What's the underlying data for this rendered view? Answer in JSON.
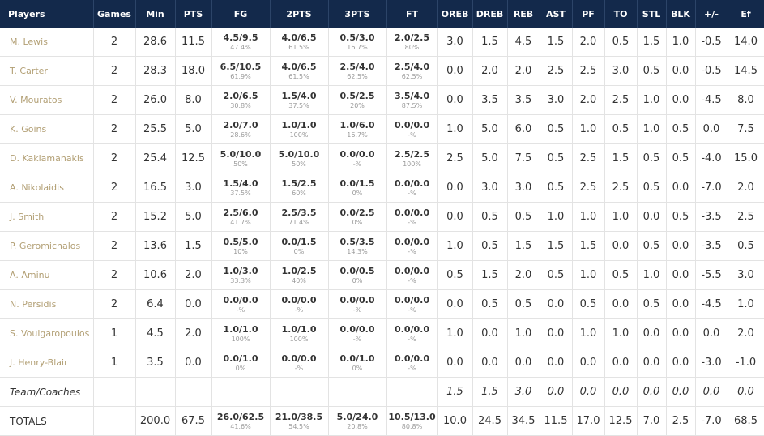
{
  "table": {
    "header": [
      "Players",
      "Games",
      "Min",
      "PTS",
      "FG",
      "2PTS",
      "3PTS",
      "FT",
      "OREB",
      "DREB",
      "REB",
      "AST",
      "PF",
      "TO",
      "STL",
      "BLK",
      "+/-",
      "Ef"
    ],
    "rows": [
      [
        "M. Lewis",
        "2",
        "28.6",
        "11.5",
        [
          "4.5/9.5",
          "47.4%"
        ],
        [
          "4.0/6.5",
          "61.5%"
        ],
        [
          "0.5/3.0",
          "16.7%"
        ],
        [
          "2.0/2.5",
          "80%"
        ],
        "3.0",
        "1.5",
        "4.5",
        "1.5",
        "2.0",
        "0.5",
        "1.5",
        "1.0",
        "-0.5",
        "14.0"
      ],
      [
        "T. Carter",
        "2",
        "28.3",
        "18.0",
        [
          "6.5/10.5",
          "61.9%"
        ],
        [
          "4.0/6.5",
          "61.5%"
        ],
        [
          "2.5/4.0",
          "62.5%"
        ],
        [
          "2.5/4.0",
          "62.5%"
        ],
        "0.0",
        "2.0",
        "2.0",
        "2.5",
        "2.5",
        "3.0",
        "0.5",
        "0.0",
        "-0.5",
        "14.5"
      ],
      [
        "V. Mouratos",
        "2",
        "26.0",
        "8.0",
        [
          "2.0/6.5",
          "30.8%"
        ],
        [
          "1.5/4.0",
          "37.5%"
        ],
        [
          "0.5/2.5",
          "20%"
        ],
        [
          "3.5/4.0",
          "87.5%"
        ],
        "0.0",
        "3.5",
        "3.5",
        "3.0",
        "2.0",
        "2.5",
        "1.0",
        "0.0",
        "-4.5",
        "8.0"
      ],
      [
        "K. Goins",
        "2",
        "25.5",
        "5.0",
        [
          "2.0/7.0",
          "28.6%"
        ],
        [
          "1.0/1.0",
          "100%"
        ],
        [
          "1.0/6.0",
          "16.7%"
        ],
        [
          "0.0/0.0",
          "-%"
        ],
        "1.0",
        "5.0",
        "6.0",
        "0.5",
        "1.0",
        "0.5",
        "1.0",
        "0.5",
        "0.0",
        "7.5"
      ],
      [
        "D. Kaklamanakis",
        "2",
        "25.4",
        "12.5",
        [
          "5.0/10.0",
          "50%"
        ],
        [
          "5.0/10.0",
          "50%"
        ],
        [
          "0.0/0.0",
          "-%"
        ],
        [
          "2.5/2.5",
          "100%"
        ],
        "2.5",
        "5.0",
        "7.5",
        "0.5",
        "2.5",
        "1.5",
        "0.5",
        "0.5",
        "-4.0",
        "15.0"
      ],
      [
        "A. Nikolaidis",
        "2",
        "16.5",
        "3.0",
        [
          "1.5/4.0",
          "37.5%"
        ],
        [
          "1.5/2.5",
          "60%"
        ],
        [
          "0.0/1.5",
          "0%"
        ],
        [
          "0.0/0.0",
          "-%"
        ],
        "0.0",
        "3.0",
        "3.0",
        "0.5",
        "2.5",
        "2.5",
        "0.5",
        "0.0",
        "-7.0",
        "2.0"
      ],
      [
        "J. Smith",
        "2",
        "15.2",
        "5.0",
        [
          "2.5/6.0",
          "41.7%"
        ],
        [
          "2.5/3.5",
          "71.4%"
        ],
        [
          "0.0/2.5",
          "0%"
        ],
        [
          "0.0/0.0",
          "-%"
        ],
        "0.0",
        "0.5",
        "0.5",
        "1.0",
        "1.0",
        "1.0",
        "0.0",
        "0.5",
        "-3.5",
        "2.5"
      ],
      [
        "P. Geromichalos",
        "2",
        "13.6",
        "1.5",
        [
          "0.5/5.0",
          "10%"
        ],
        [
          "0.0/1.5",
          "0%"
        ],
        [
          "0.5/3.5",
          "14.3%"
        ],
        [
          "0.0/0.0",
          "-%"
        ],
        "1.0",
        "0.5",
        "1.5",
        "1.5",
        "1.5",
        "0.0",
        "0.5",
        "0.0",
        "-3.5",
        "0.5"
      ],
      [
        "A. Aminu",
        "2",
        "10.6",
        "2.0",
        [
          "1.0/3.0",
          "33.3%"
        ],
        [
          "1.0/2.5",
          "40%"
        ],
        [
          "0.0/0.5",
          "0%"
        ],
        [
          "0.0/0.0",
          "-%"
        ],
        "0.5",
        "1.5",
        "2.0",
        "0.5",
        "1.0",
        "0.5",
        "1.0",
        "0.0",
        "-5.5",
        "3.0"
      ],
      [
        "N. Persidis",
        "2",
        "6.4",
        "0.0",
        [
          "0.0/0.0",
          "-%"
        ],
        [
          "0.0/0.0",
          "-%"
        ],
        [
          "0.0/0.0",
          "-%"
        ],
        [
          "0.0/0.0",
          "-%"
        ],
        "0.0",
        "0.5",
        "0.5",
        "0.0",
        "0.5",
        "0.0",
        "0.5",
        "0.0",
        "-4.5",
        "1.0"
      ],
      [
        "S. Voulgaropoulos",
        "1",
        "4.5",
        "2.0",
        [
          "1.0/1.0",
          "100%"
        ],
        [
          "1.0/1.0",
          "100%"
        ],
        [
          "0.0/0.0",
          "-%"
        ],
        [
          "0.0/0.0",
          "-%"
        ],
        "1.0",
        "0.0",
        "1.0",
        "0.0",
        "1.0",
        "1.0",
        "0.0",
        "0.0",
        "0.0",
        "2.0"
      ],
      [
        "J. Henry-Blair",
        "1",
        "3.5",
        "0.0",
        [
          "0.0/1.0",
          "0%"
        ],
        [
          "0.0/0.0",
          "-%"
        ],
        [
          "0.0/1.0",
          "0%"
        ],
        [
          "0.0/0.0",
          "-%"
        ],
        "0.0",
        "0.0",
        "0.0",
        "0.0",
        "0.0",
        "0.0",
        "0.0",
        "0.0",
        "-3.0",
        "-1.0"
      ]
    ],
    "team_row": [
      "Team/Coaches",
      null,
      null,
      null,
      null,
      null,
      null,
      null,
      "1.5",
      "1.5",
      "3.0",
      "0.0",
      "0.0",
      "0.0",
      "0.0",
      "0.0",
      "0.0",
      "0.0"
    ],
    "totals_row": [
      "TOTALS",
      null,
      "200.0",
      "67.5",
      [
        "26.0/62.5",
        "41.6%"
      ],
      [
        "21.0/38.5",
        "54.5%"
      ],
      [
        "5.0/24.0",
        "20.8%"
      ],
      [
        "10.5/13.0",
        "80.8%"
      ],
      "10.0",
      "24.5",
      "34.5",
      "11.5",
      "17.0",
      "12.5",
      "7.0",
      "2.5",
      "-7.0",
      "68.5"
    ]
  }
}
